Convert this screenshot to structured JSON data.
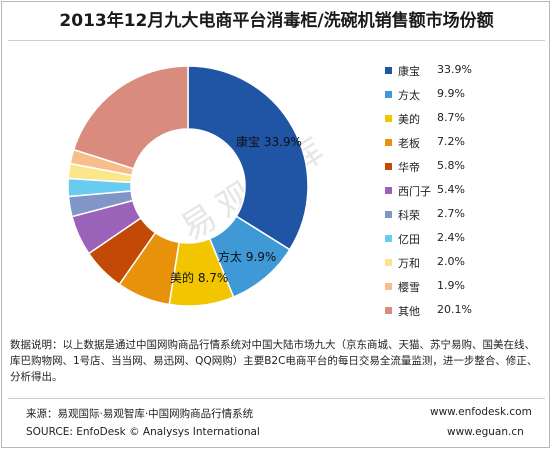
{
  "title": "2013年12月九大电商平台消毒柜/洗碗机销售额市场份额",
  "watermark": "易观智库",
  "chart_data": {
    "type": "pie",
    "title": "2013年12月九大电商平台消毒柜/洗碗机销售额市场份额",
    "unit": "%",
    "legend_position": "right",
    "series": [
      {
        "name": "康宝",
        "value": 33.9,
        "label": "33.9%",
        "color": "#1f55a4"
      },
      {
        "name": "方太",
        "value": 9.9,
        "label": "9.9%",
        "color": "#3f99d6"
      },
      {
        "name": "美的",
        "value": 8.7,
        "label": "8.7%",
        "color": "#f2c500"
      },
      {
        "name": "老板",
        "value": 7.2,
        "label": "7.2%",
        "color": "#e8920c"
      },
      {
        "name": "华帝",
        "value": 5.8,
        "label": "5.8%",
        "color": "#c24a06"
      },
      {
        "name": "西门子",
        "value": 5.4,
        "label": "5.4%",
        "color": "#9a63b9"
      },
      {
        "name": "科荣",
        "value": 2.7,
        "label": "2.7%",
        "color": "#8096c7"
      },
      {
        "name": "亿田",
        "value": 2.4,
        "label": "2.4%",
        "color": "#67ccef"
      },
      {
        "name": "万和",
        "value": 2.0,
        "label": "2.0%",
        "color": "#fbe78a"
      },
      {
        "name": "樱雪",
        "value": 1.9,
        "label": "1.9%",
        "color": "#f8bd8c"
      },
      {
        "name": "其他",
        "value": 20.1,
        "label": "20.1%",
        "color": "#d98b7e"
      }
    ],
    "data_labels": [
      {
        "name": "康宝",
        "value": "33.9%"
      },
      {
        "name": "方太",
        "value": "9.9%"
      },
      {
        "name": "美的",
        "value": "8.7%"
      }
    ]
  },
  "note": "数据说明：以上数据是通过中国网购商品行情系统对中国大陆市场九大（京东商城、天猫、苏宁易购、国美在线、库巴购物网、1号店、当当网、易迅网、QQ网购）主要B2C电商平台的每日交易全流量监测，进一步整合、修正、分析得出。",
  "footer": {
    "source_cn": "来源：易观国际·易观智库·中国网购商品行情系统",
    "source_en": "SOURCE: EnfoDesk © Analysys International",
    "url1": "www.enfodesk.com",
    "url2": "www.eguan.cn"
  }
}
